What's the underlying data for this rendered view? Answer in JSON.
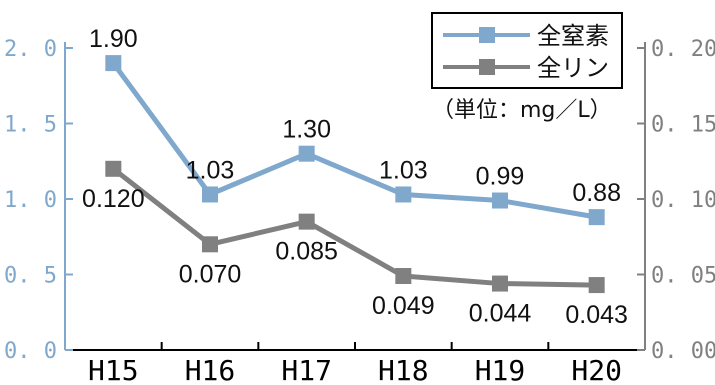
{
  "chart_data": {
    "type": "line",
    "categories": [
      "H15",
      "H16",
      "H17",
      "H18",
      "H19",
      "H20"
    ],
    "series": [
      {
        "name": "全窒素",
        "axis": "left",
        "color": "#7fa8cc",
        "values": [
          1.9,
          1.03,
          1.3,
          1.03,
          0.99,
          0.88
        ],
        "labels": [
          "1.90",
          "1.03",
          "1.30",
          "1.03",
          "0.99",
          "0.88"
        ]
      },
      {
        "name": "全リン",
        "axis": "right",
        "color": "#808080",
        "values": [
          0.12,
          0.07,
          0.085,
          0.049,
          0.044,
          0.043
        ],
        "labels": [
          "0.120",
          "0.070",
          "0.085",
          "0.049",
          "0.044",
          "0.043"
        ]
      }
    ],
    "y_left": {
      "ylim": [
        0,
        2.0
      ],
      "ticks": [
        "0. 0",
        "0. 5",
        "1. 0",
        "1. 5",
        "2. 0"
      ],
      "tick_values": [
        0,
        0.5,
        1.0,
        1.5,
        2.0
      ],
      "color": "#7fa8cc"
    },
    "y_right": {
      "ylim": [
        0,
        0.2
      ],
      "ticks": [
        "0. 00",
        "0. 05",
        "0. 10",
        "0. 15",
        "0. 20"
      ],
      "tick_values": [
        0,
        0.05,
        0.1,
        0.15,
        0.2
      ],
      "color": "#808080"
    },
    "unit_label": "（単位：mg／L）",
    "legend_position": "top-right",
    "grid": false
  }
}
